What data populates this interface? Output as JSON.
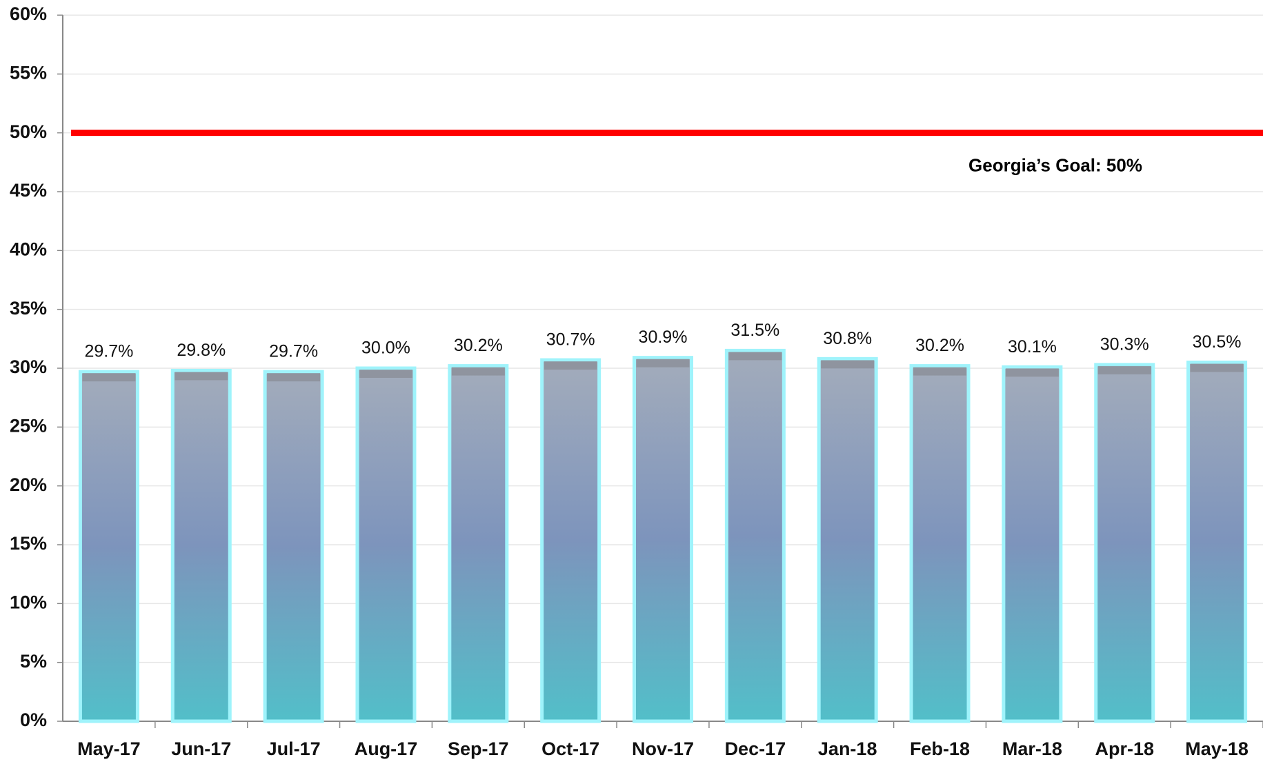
{
  "chart_data": {
    "type": "bar",
    "categories": [
      "May-17",
      "Jun-17",
      "Jul-17",
      "Aug-17",
      "Sep-17",
      "Oct-17",
      "Nov-17",
      "Dec-17",
      "Jan-18",
      "Feb-18",
      "Mar-18",
      "Apr-18",
      "May-18"
    ],
    "values": [
      29.7,
      29.8,
      29.7,
      30.0,
      30.2,
      30.7,
      30.9,
      31.5,
      30.8,
      30.2,
      30.1,
      30.3,
      30.5
    ],
    "value_labels": [
      "29.7%",
      "29.8%",
      "29.7%",
      "30.0%",
      "30.2%",
      "30.7%",
      "30.9%",
      "31.5%",
      "30.8%",
      "30.2%",
      "30.1%",
      "30.3%",
      "30.5%"
    ],
    "color": "#6f8fb5",
    "ylim": [
      0,
      60
    ],
    "yticks": [
      {
        "value": 0,
        "label": "0%"
      },
      {
        "value": 5,
        "label": "5%"
      },
      {
        "value": 10,
        "label": "10%"
      },
      {
        "value": 15,
        "label": "15%"
      },
      {
        "value": 20,
        "label": "20%"
      },
      {
        "value": 25,
        "label": "25%"
      },
      {
        "value": 30,
        "label": "30%"
      },
      {
        "value": 35,
        "label": "35%"
      },
      {
        "value": 40,
        "label": "40%"
      },
      {
        "value": 45,
        "label": "45%"
      },
      {
        "value": 50,
        "label": "50%"
      },
      {
        "value": 55,
        "label": "55%"
      },
      {
        "value": 60,
        "label": "60%"
      }
    ],
    "grid": true,
    "goal": {
      "value": 50,
      "label": "Georgia’s Goal:  50%",
      "color": "#ff0000"
    }
  }
}
